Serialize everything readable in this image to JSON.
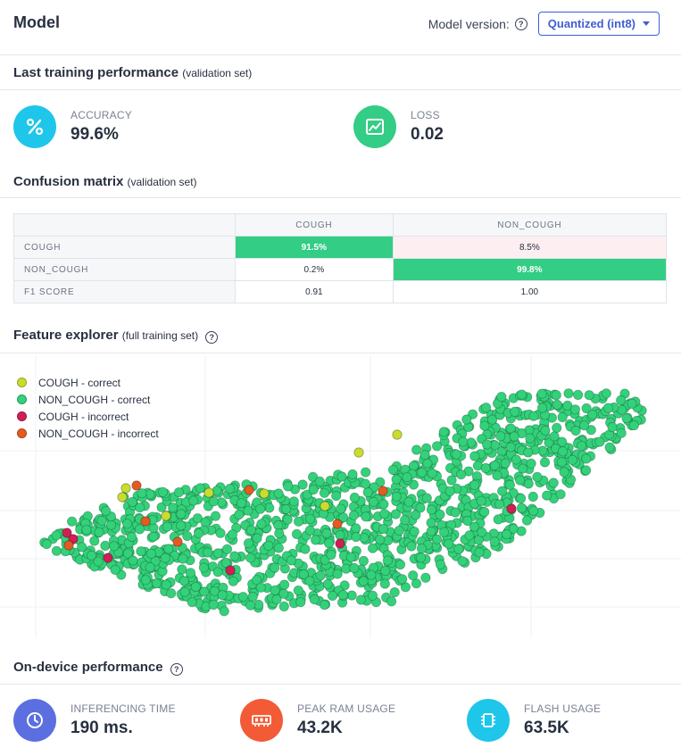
{
  "header": {
    "title": "Model",
    "version_label": "Model version:",
    "version_selected": "Quantized (int8)"
  },
  "training": {
    "title": "Last training performance",
    "subtitle": "(validation set)",
    "accuracy": {
      "label": "ACCURACY",
      "value": "99.6%",
      "icon": "percent-icon",
      "color": "#1ec6ea"
    },
    "loss": {
      "label": "LOSS",
      "value": "0.02",
      "icon": "chart-icon",
      "color": "#33cd85"
    }
  },
  "confusion": {
    "title": "Confusion matrix",
    "subtitle": "(validation set)",
    "columns": [
      "COUGH",
      "NON_COUGH"
    ],
    "rows": [
      {
        "label": "COUGH",
        "cells": [
          "91.5%",
          "8.5%"
        ]
      },
      {
        "label": "NON_COUGH",
        "cells": [
          "0.2%",
          "99.8%"
        ]
      },
      {
        "label": "F1 SCORE",
        "cells": [
          "0.91",
          "1.00"
        ]
      }
    ]
  },
  "explorer": {
    "title": "Feature explorer",
    "subtitle": "(full training set)",
    "legend": [
      {
        "label": "COUGH - correct",
        "color": "#c9dd2c"
      },
      {
        "label": "NON_COUGH - correct",
        "color": "#33d17a"
      },
      {
        "label": "COUGH - incorrect",
        "color": "#d11f55"
      },
      {
        "label": "NON_COUGH - incorrect",
        "color": "#e55a1f"
      }
    ]
  },
  "on_device": {
    "title": "On-device performance",
    "metrics": [
      {
        "label": "INFERENCING TIME",
        "value": "190 ms.",
        "icon": "clock-icon",
        "color": "#5b6fe0"
      },
      {
        "label": "PEAK RAM USAGE",
        "value": "43.2K",
        "icon": "ram-icon",
        "color": "#f35a36"
      },
      {
        "label": "FLASH USAGE",
        "value": "63.5K",
        "icon": "chip-icon",
        "color": "#1ec6ea"
      }
    ]
  }
}
